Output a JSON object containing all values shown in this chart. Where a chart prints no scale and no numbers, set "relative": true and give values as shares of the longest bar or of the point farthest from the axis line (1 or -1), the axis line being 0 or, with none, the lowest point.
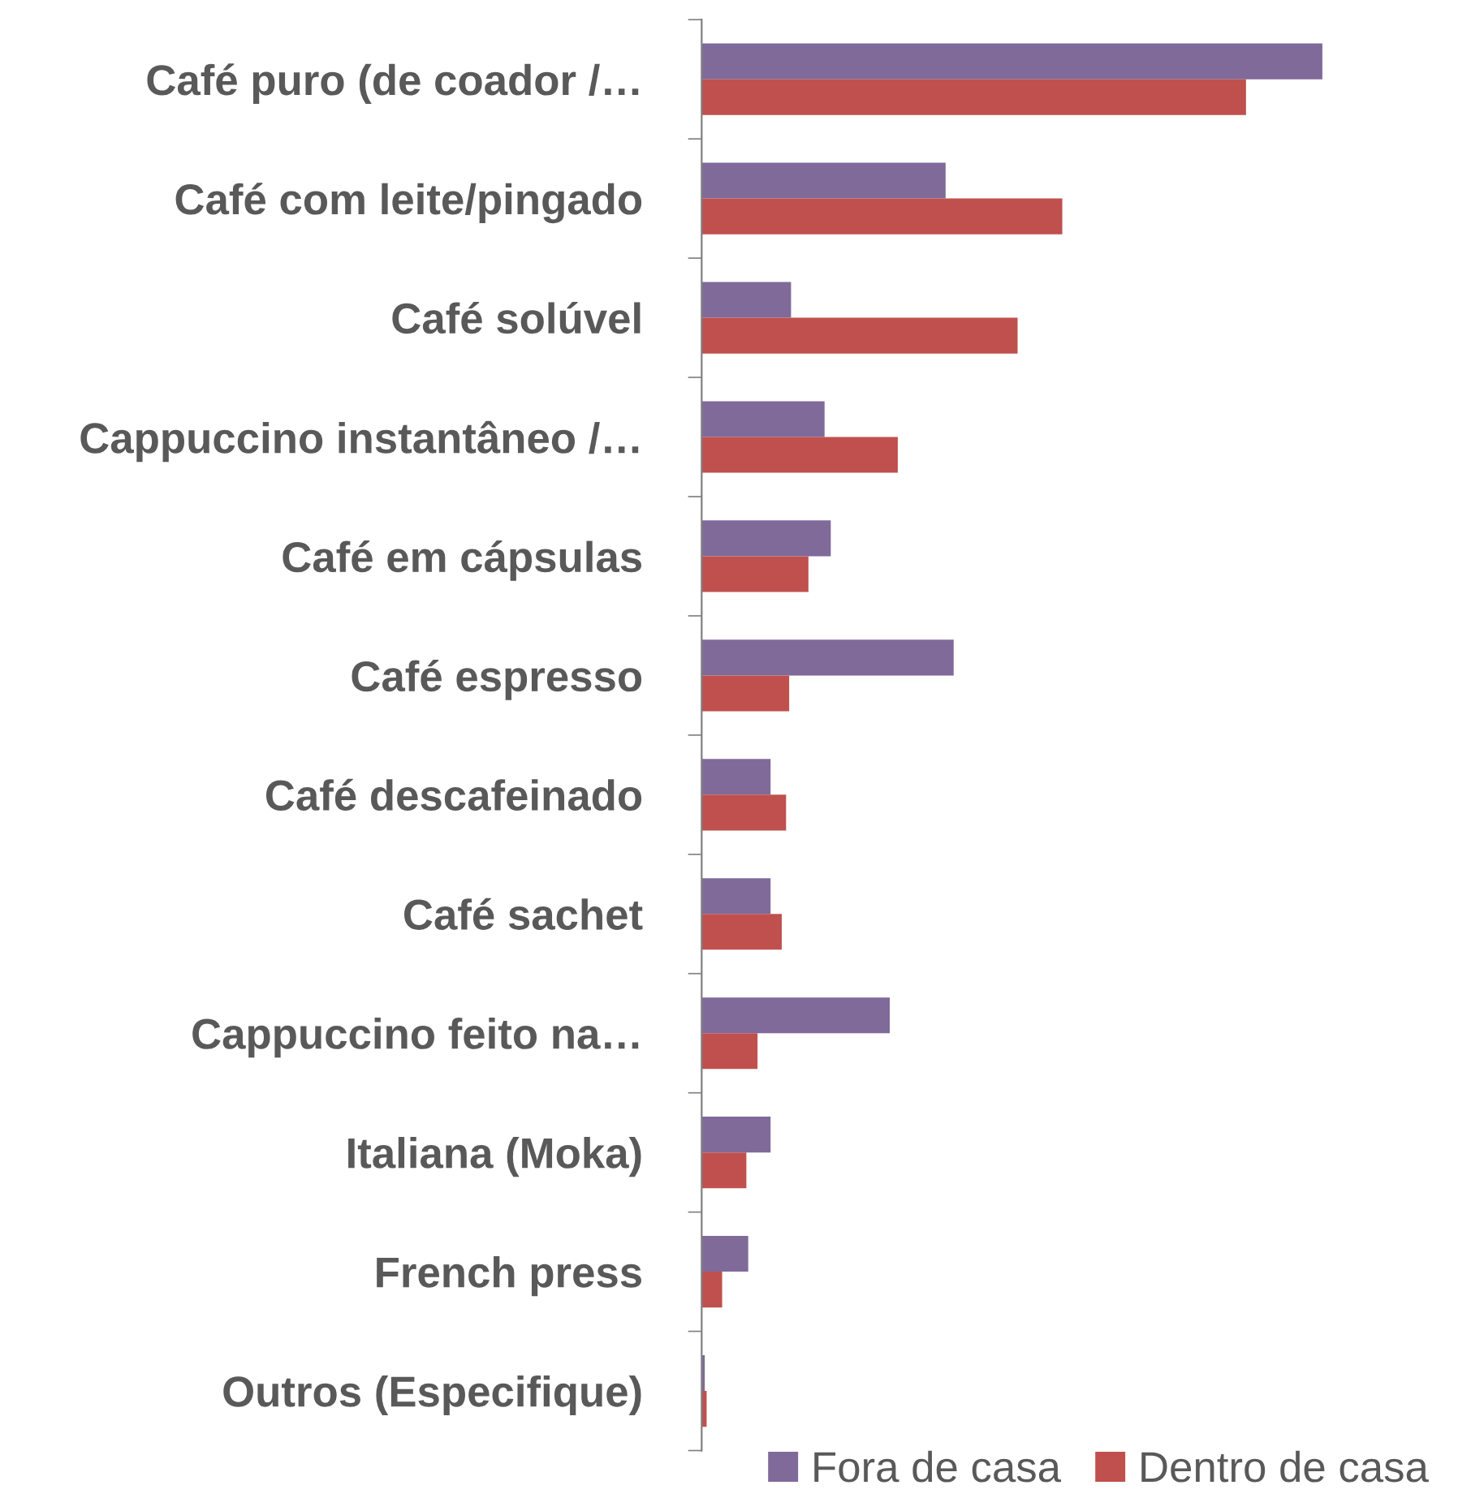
{
  "chart_data": {
    "type": "bar",
    "orientation": "horizontal",
    "relative": true,
    "legend": "bottom",
    "grid": false,
    "categories": [
      "Café puro (de coador /…",
      "Café com leite/pingado",
      "Café solúvel",
      "Cappuccino instantâneo /…",
      "Café em cápsulas",
      "Café espresso",
      "Café descafeinado",
      "Café sachet",
      "Cappuccino feito na…",
      "Italiana (Moka)",
      "French press",
      "Outros (Especifique)"
    ],
    "series": [
      {
        "name": "Fora de casa",
        "color": "#7f6a9a",
        "values": [
          1.0,
          0.393,
          0.144,
          0.198,
          0.208,
          0.406,
          0.111,
          0.111,
          0.303,
          0.111,
          0.075,
          0.005
        ]
      },
      {
        "name": "Dentro de casa",
        "color": "#c0504d",
        "values": [
          0.877,
          0.581,
          0.509,
          0.316,
          0.172,
          0.141,
          0.136,
          0.129,
          0.09,
          0.072,
          0.033,
          0.008
        ]
      }
    ]
  }
}
